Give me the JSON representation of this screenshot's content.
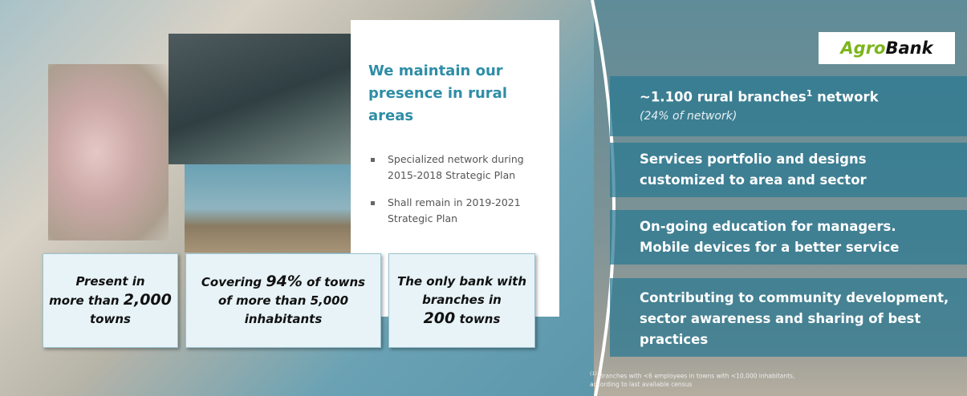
{
  "panel": {
    "title_lines": [
      "We maintain our",
      "presence in rural areas"
    ],
    "bullets": [
      [
        "Specialized network during",
        "2015-2018  Strategic Plan"
      ],
      [
        "Shall remain in 2019-2021",
        "Strategic Plan"
      ]
    ]
  },
  "boxes": [
    {
      "lines": [
        [
          "Present in"
        ],
        [
          "more than ",
          "2,000"
        ],
        [
          "towns"
        ]
      ]
    },
    {
      "lines": [
        [
          "Covering ",
          "94%",
          " of towns"
        ],
        [
          "of more than 5,000"
        ],
        [
          "inhabitants"
        ]
      ]
    },
    {
      "lines": [
        [
          "The only bank with"
        ],
        [
          "branches in"
        ],
        [
          "200",
          " towns"
        ]
      ]
    }
  ],
  "logo": {
    "part1": "Agro",
    "part2": "Bank"
  },
  "items": [
    {
      "title": [
        "~1.100 rural branches",
        "1",
        " network"
      ],
      "subtitle": "(24% of network)"
    },
    {
      "lines": [
        "Services portfolio and designs",
        "customized to area and sector"
      ]
    },
    {
      "lines": [
        "On-going education for managers.",
        "Mobile devices for a better service"
      ]
    },
    {
      "lines": [
        "Contributing to community development,",
        "sector awareness and sharing of best",
        "practices"
      ]
    }
  ],
  "footnote": {
    "mark": "(1)",
    "lines": [
      " Branches with <6 employees in towns with <10,000 inhabitants,",
      "according to last available census"
    ]
  }
}
